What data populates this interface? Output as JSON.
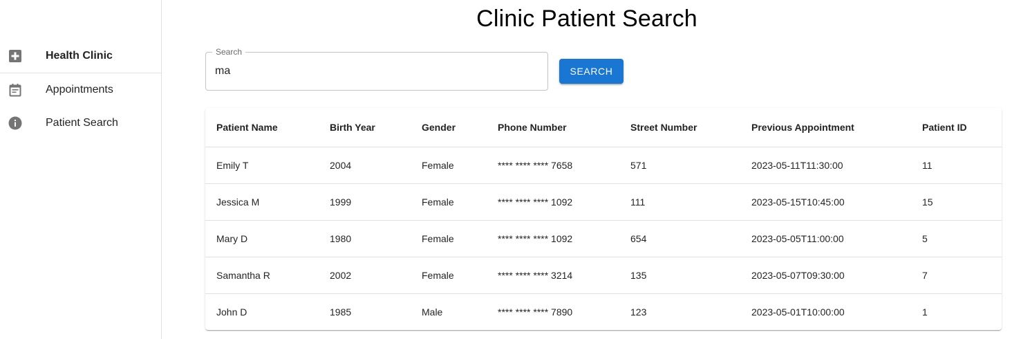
{
  "sidebar": {
    "brand": {
      "label": "Health Clinic",
      "icon": "plus-box-icon"
    },
    "items": [
      {
        "label": "Appointments",
        "icon": "calendar-icon"
      },
      {
        "label": "Patient Search",
        "icon": "info-icon"
      }
    ]
  },
  "page": {
    "title": "Clinic Patient Search"
  },
  "search": {
    "label": "Search",
    "value": "ma",
    "button_label": "SEARCH"
  },
  "table": {
    "headers": [
      "Patient Name",
      "Birth Year",
      "Gender",
      "Phone Number",
      "Street Number",
      "Previous Appointment",
      "Patient ID"
    ],
    "rows": [
      [
        "Emily T",
        "2004",
        "Female",
        "**** **** **** 7658",
        "571",
        "2023-05-11T11:30:00",
        "11"
      ],
      [
        "Jessica M",
        "1999",
        "Female",
        "**** **** **** 1092",
        "111",
        "2023-05-15T10:45:00",
        "15"
      ],
      [
        "Mary D",
        "1980",
        "Female",
        "**** **** **** 1092",
        "654",
        "2023-05-05T11:00:00",
        "5"
      ],
      [
        "Samantha R",
        "2002",
        "Female",
        "**** **** **** 3214",
        "135",
        "2023-05-07T09:30:00",
        "7"
      ],
      [
        "John D",
        "1985",
        "Male",
        "**** **** **** 7890",
        "123",
        "2023-05-01T10:00:00",
        "1"
      ]
    ]
  },
  "colors": {
    "primary": "#1976d2",
    "icon": "#757575",
    "divider": "#e0e0e0"
  }
}
